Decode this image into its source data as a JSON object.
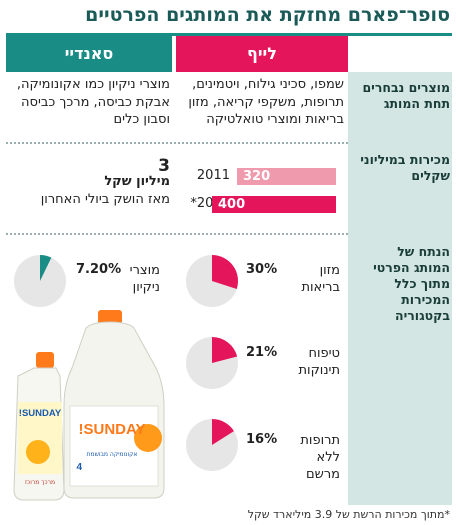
{
  "title": "סופר־פארם מחזקת את המותגים הפרטיים",
  "columns": {
    "life": "לייף",
    "sunday": "סאנדיי"
  },
  "rows": {
    "products_label": "מוצרים נבחרים תחת המותג",
    "sales_label": "מכירות במיליוני שקלים",
    "share_label": "הנתח של המותג הפרטי מתוך כלל המכירות בקטגוריה"
  },
  "life_products": "שמפו, סכיני גילוח, ויטמינים, תרופות, משקפי קריאה, מזון בריאות ומוצרי טואלטיקה",
  "sunday_products": "מוצרי ניקיון כמו אקונומיקה, אבקת כביסה, מרכך כביסה וסבון כלים",
  "sunday_sales": {
    "value": "3",
    "unit": "מיליון שקל",
    "note": "מאז הושק ביולי האחרון"
  },
  "product_labels": {
    "small_bottle": "SUNDAY!",
    "big_bottle": "SUNDAY!",
    "small_text": "מרכך מרוכז",
    "big_text": "אקונומיקה מבושמת"
  },
  "footnote": "*מתוך מכירות הרשת של 3.9 מיליארד שקל",
  "colors": {
    "accent": "#e4155b",
    "teal": "#1a8c86",
    "light_pink": "#f09aae",
    "label_bg": "#d3e6e4"
  },
  "chart_data": [
    {
      "type": "bar",
      "categories": [
        "2011",
        "*2012"
      ],
      "values": [
        320,
        400
      ],
      "title": "",
      "xlabel": "",
      "ylabel": ""
    },
    {
      "type": "pie",
      "series": [
        {
          "name": "מזון בריאות",
          "values": [
            30,
            70
          ],
          "label": "30%"
        },
        {
          "name": "טיפוח תינוקות",
          "values": [
            21,
            79
          ],
          "label": "21%"
        },
        {
          "name": "תרופות ללא מרשם",
          "values": [
            16,
            84
          ],
          "label": "16%"
        },
        {
          "name": "מוצרי ניקיון",
          "values": [
            7.2,
            92.8
          ],
          "label": "7.20%"
        }
      ]
    }
  ]
}
